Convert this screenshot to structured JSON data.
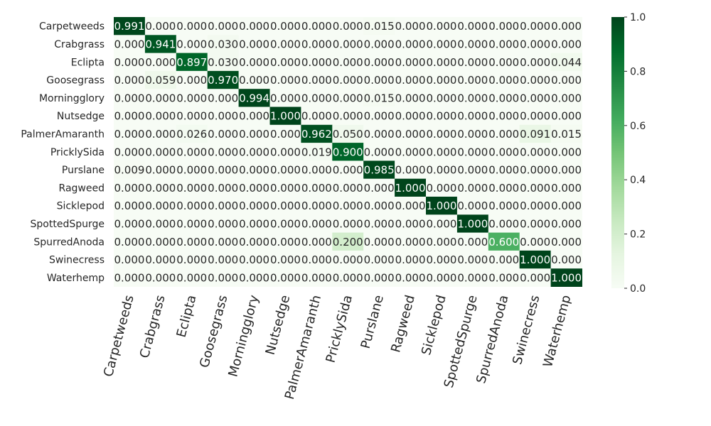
{
  "chart_data": {
    "type": "heatmap",
    "title": "",
    "xlabel": "",
    "ylabel": "",
    "rows": [
      "Carpetweeds",
      "Crabgrass",
      "Eclipta",
      "Goosegrass",
      "Morningglory",
      "Nutsedge",
      "PalmerAmaranth",
      "PricklySida",
      "Purslane",
      "Ragweed",
      "Sicklepod",
      "SpottedSpurge",
      "SpurredAnoda",
      "Swinecress",
      "Waterhemp"
    ],
    "columns": [
      "Carpetweeds",
      "Crabgrass",
      "Eclipta",
      "Goosegrass",
      "Morningglory",
      "Nutsedge",
      "PalmerAmaranth",
      "PricklySida",
      "Purslane",
      "Ragweed",
      "Sicklepod",
      "SpottedSpurge",
      "SpurredAnoda",
      "Swinecress",
      "Waterhemp"
    ],
    "values": [
      [
        0.991,
        0.0,
        0.0,
        0.0,
        0.0,
        0.0,
        0.0,
        0.0,
        0.015,
        0.0,
        0.0,
        0.0,
        0.0,
        0.0,
        0.0
      ],
      [
        0.0,
        0.941,
        0.0,
        0.03,
        0.0,
        0.0,
        0.0,
        0.0,
        0.0,
        0.0,
        0.0,
        0.0,
        0.0,
        0.0,
        0.0
      ],
      [
        0.0,
        0.0,
        0.897,
        0.03,
        0.0,
        0.0,
        0.0,
        0.0,
        0.0,
        0.0,
        0.0,
        0.0,
        0.0,
        0.0,
        0.044
      ],
      [
        0.0,
        0.059,
        0.0,
        0.97,
        0.0,
        0.0,
        0.0,
        0.0,
        0.0,
        0.0,
        0.0,
        0.0,
        0.0,
        0.0,
        0.0
      ],
      [
        0.0,
        0.0,
        0.0,
        0.0,
        0.994,
        0.0,
        0.0,
        0.0,
        0.015,
        0.0,
        0.0,
        0.0,
        0.0,
        0.0,
        0.0
      ],
      [
        0.0,
        0.0,
        0.0,
        0.0,
        0.0,
        1.0,
        0.0,
        0.0,
        0.0,
        0.0,
        0.0,
        0.0,
        0.0,
        0.0,
        0.0
      ],
      [
        0.0,
        0.0,
        0.026,
        0.0,
        0.0,
        0.0,
        0.962,
        0.05,
        0.0,
        0.0,
        0.0,
        0.0,
        0.0,
        0.091,
        0.015
      ],
      [
        0.0,
        0.0,
        0.0,
        0.0,
        0.0,
        0.0,
        0.019,
        0.9,
        0.0,
        0.0,
        0.0,
        0.0,
        0.0,
        0.0,
        0.0
      ],
      [
        0.009,
        0.0,
        0.0,
        0.0,
        0.0,
        0.0,
        0.0,
        0.0,
        0.985,
        0.0,
        0.0,
        0.0,
        0.0,
        0.0,
        0.0
      ],
      [
        0.0,
        0.0,
        0.0,
        0.0,
        0.0,
        0.0,
        0.0,
        0.0,
        0.0,
        1.0,
        0.0,
        0.0,
        0.0,
        0.0,
        0.0
      ],
      [
        0.0,
        0.0,
        0.0,
        0.0,
        0.0,
        0.0,
        0.0,
        0.0,
        0.0,
        0.0,
        1.0,
        0.0,
        0.0,
        0.0,
        0.0
      ],
      [
        0.0,
        0.0,
        0.0,
        0.0,
        0.0,
        0.0,
        0.0,
        0.0,
        0.0,
        0.0,
        0.0,
        1.0,
        0.0,
        0.0,
        0.0
      ],
      [
        0.0,
        0.0,
        0.0,
        0.0,
        0.0,
        0.0,
        0.0,
        0.2,
        0.0,
        0.0,
        0.0,
        0.0,
        0.6,
        0.0,
        0.0
      ],
      [
        0.0,
        0.0,
        0.0,
        0.0,
        0.0,
        0.0,
        0.0,
        0.0,
        0.0,
        0.0,
        0.0,
        0.0,
        0.0,
        1.0,
        0.0
      ],
      [
        0.0,
        0.0,
        0.0,
        0.0,
        0.0,
        0.0,
        0.0,
        0.0,
        0.0,
        0.0,
        0.0,
        0.0,
        0.0,
        0.0,
        1.0
      ]
    ],
    "value_format": "0.000",
    "colormap": "Greens",
    "colors": {
      "low": "#f7fcf5",
      "high": "#00441b"
    },
    "colorbar": {
      "range": [
        0.0,
        1.0
      ],
      "ticks": [
        "0.0",
        "0.2",
        "0.4",
        "0.6",
        "0.8",
        "1.0"
      ]
    },
    "grid": false
  }
}
